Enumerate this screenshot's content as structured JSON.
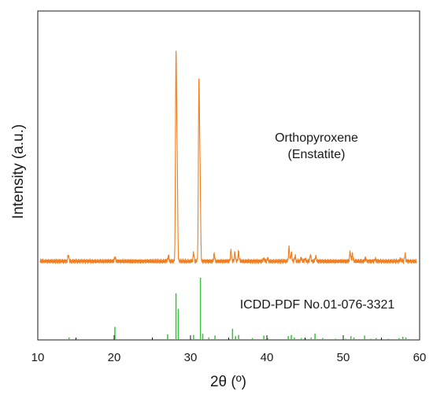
{
  "chart_data": {
    "type": "line",
    "xlabel": "2θ (º)",
    "ylabel": "Intensity (a.u.)",
    "xlim": [
      10,
      60
    ],
    "xticks": [
      10,
      20,
      30,
      40,
      50,
      60
    ],
    "grid": false,
    "colors": {
      "pattern": "#f07d1e",
      "reference": "#3cbf3c",
      "axes": "#1a1a1a"
    },
    "annotations": {
      "sample_line1": "Orthopyroxene",
      "sample_line2": "(Enstatite)",
      "reference_label": "ICDD-PDF No.01-076-3321"
    },
    "series": [
      {
        "type": "line",
        "peaks": [
          [
            14.0,
            0.03
          ],
          [
            20.1,
            0.02
          ],
          [
            27.1,
            0.025
          ],
          [
            28.1,
            0.95
          ],
          [
            28.25,
            0.45
          ],
          [
            30.4,
            0.04
          ],
          [
            31.1,
            0.83
          ],
          [
            31.25,
            0.4
          ],
          [
            33.1,
            0.035
          ],
          [
            35.3,
            0.05
          ],
          [
            35.8,
            0.04
          ],
          [
            36.3,
            0.045
          ],
          [
            39.6,
            0.015
          ],
          [
            40.1,
            0.012
          ],
          [
            42.9,
            0.065
          ],
          [
            43.2,
            0.04
          ],
          [
            43.7,
            0.025
          ],
          [
            44.5,
            0.015
          ],
          [
            45.0,
            0.012
          ],
          [
            45.7,
            0.03
          ],
          [
            46.4,
            0.025
          ],
          [
            50.9,
            0.045
          ],
          [
            51.2,
            0.035
          ],
          [
            52.9,
            0.015
          ],
          [
            54.2,
            0.01
          ],
          [
            57.5,
            0.012
          ],
          [
            58.1,
            0.035
          ]
        ]
      },
      {
        "type": "sticks",
        "sticks": [
          [
            14.1,
            0.04
          ],
          [
            20.1,
            0.21
          ],
          [
            27.0,
            0.09
          ],
          [
            28.1,
            0.75
          ],
          [
            28.4,
            0.5
          ],
          [
            30.4,
            0.08
          ],
          [
            31.3,
            1.0
          ],
          [
            31.6,
            0.1
          ],
          [
            32.4,
            0.04
          ],
          [
            33.2,
            0.07
          ],
          [
            35.5,
            0.18
          ],
          [
            35.9,
            0.06
          ],
          [
            36.3,
            0.08
          ],
          [
            38.1,
            0.03
          ],
          [
            39.6,
            0.07
          ],
          [
            40.1,
            0.03
          ],
          [
            42.8,
            0.06
          ],
          [
            43.2,
            0.08
          ],
          [
            43.6,
            0.04
          ],
          [
            44.5,
            0.03
          ],
          [
            45.1,
            0.02
          ],
          [
            45.8,
            0.04
          ],
          [
            46.3,
            0.1
          ],
          [
            47.3,
            0.03
          ],
          [
            49.0,
            0.02
          ],
          [
            50.3,
            0.02
          ],
          [
            51.0,
            0.06
          ],
          [
            51.4,
            0.04
          ],
          [
            52.8,
            0.07
          ],
          [
            53.6,
            0.02
          ],
          [
            54.3,
            0.03
          ],
          [
            55.9,
            0.02
          ],
          [
            57.3,
            0.03
          ],
          [
            57.8,
            0.05
          ],
          [
            58.2,
            0.04
          ]
        ]
      }
    ]
  }
}
